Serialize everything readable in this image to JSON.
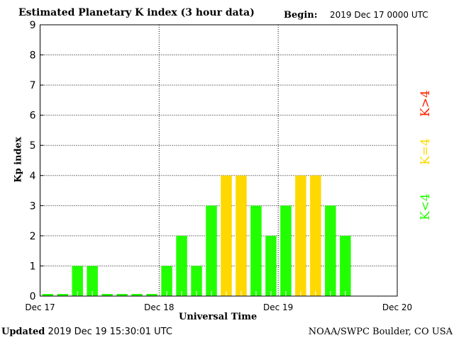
{
  "header": {
    "title": "Estimated Planetary K index (3 hour data)",
    "begin_label": "Begin:",
    "begin_value": "2019 Dec 17 0000 UTC"
  },
  "footer": {
    "updated_label": "Updated",
    "updated_value": "2019 Dec 19 15:30:01 UTC",
    "credit": "NOAA/SWPC Boulder, CO USA"
  },
  "legend": {
    "low": "K<4",
    "eq": "K=4",
    "high": "K>4"
  },
  "colors": {
    "low": "#22ff00",
    "eq": "#ffd800",
    "high": "#ff2200"
  },
  "chart_data": {
    "type": "bar",
    "title": "Estimated Planetary K index (3 hour data)",
    "xlabel": "Universal Time",
    "ylabel": "Kp index",
    "ylim": [
      0,
      9
    ],
    "yticks": [
      "0",
      "1",
      "2",
      "3",
      "4",
      "5",
      "6",
      "7",
      "8",
      "9"
    ],
    "xticks": [
      "Dec 17",
      "Dec 18",
      "Dec 19",
      "Dec 20"
    ],
    "slots_per_day": 8,
    "values": [
      0,
      0,
      1,
      1,
      0,
      0,
      0,
      0,
      1,
      2,
      1,
      3,
      4,
      4,
      3,
      2,
      3,
      4,
      4,
      3,
      2
    ],
    "grid": true
  }
}
